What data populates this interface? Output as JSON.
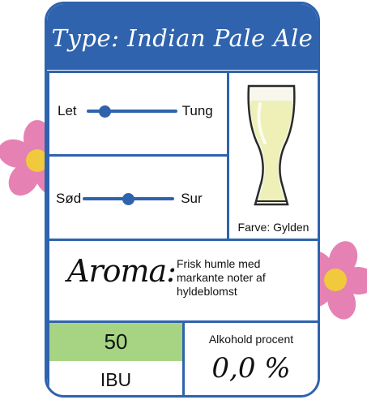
{
  "header": {
    "title": "Type: Indian Pale Ale"
  },
  "body_slider": {
    "left_label": "Let",
    "right_label": "Tung",
    "value_fraction": 0.2
  },
  "taste_slider": {
    "left_label": "Sød",
    "right_label": "Sur",
    "value_fraction": 0.5
  },
  "color": {
    "label": "Farve: Gylden",
    "beer_color": "#eef0b8"
  },
  "aroma": {
    "heading": "Aroma:",
    "description": "Frisk humle med markante noter af hyldeblomst"
  },
  "bitterness": {
    "value": "50",
    "unit": "IBU"
  },
  "alcohol": {
    "label": "Alkohold procent",
    "value": "0,0 %"
  },
  "colors": {
    "accent": "#2f63ad",
    "ibu_highlight": "#a6d483",
    "flower_petal": "#e582b3",
    "flower_center": "#f0c93c"
  }
}
